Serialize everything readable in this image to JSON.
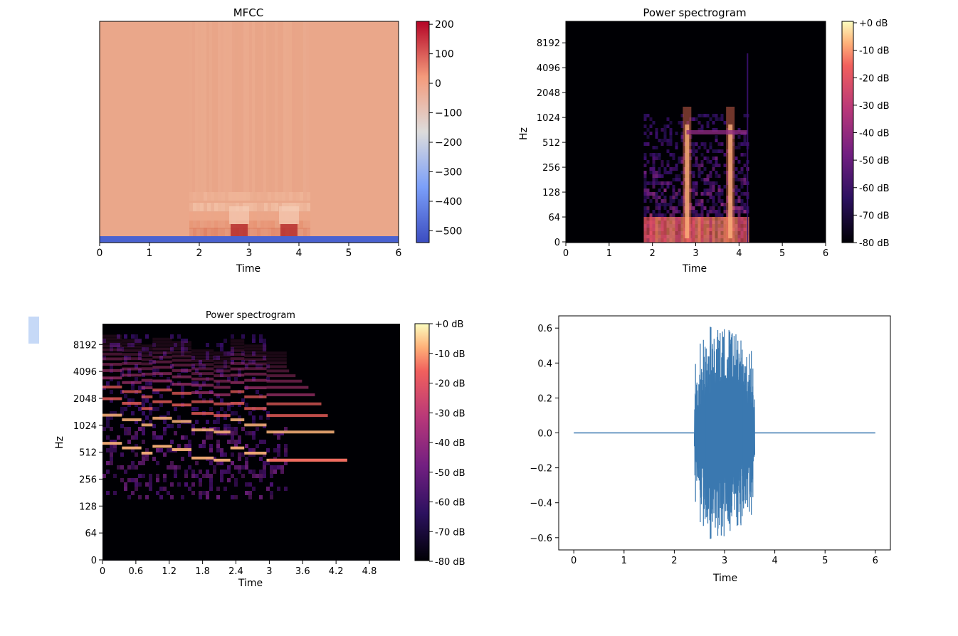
{
  "cell_marker": {
    "color": "#c6d9f7"
  },
  "chart_data": [
    {
      "type": "heatmap",
      "title": "MFCC",
      "xlabel": "Time",
      "ylabel": "",
      "x_ticks": [
        "0",
        "1",
        "2",
        "3",
        "4",
        "5",
        "6"
      ],
      "xlim": [
        0,
        6
      ],
      "y_ticks": [],
      "colorbar": {
        "colormap": "coolwarm",
        "ticks": [
          "200",
          "100",
          "0",
          "−100",
          "−200",
          "−300",
          "−400",
          "−500"
        ],
        "range": [
          -540,
          210
        ]
      },
      "content": {
        "background_value": 40,
        "bottom_band_value": -500,
        "active_segments": [
          {
            "start": 1.8,
            "end": 4.2
          }
        ],
        "peaks": [
          2.8,
          3.8
        ]
      }
    },
    {
      "type": "heatmap",
      "title": "Power spectrogram",
      "xlabel": "Time",
      "ylabel": "Hz",
      "x_ticks": [
        "0",
        "1",
        "2",
        "3",
        "4",
        "5",
        "6"
      ],
      "xlim": [
        0,
        6
      ],
      "y_ticks": [
        "0",
        "64",
        "128",
        "256",
        "512",
        "1024",
        "2048",
        "4096",
        "8192"
      ],
      "colorbar": {
        "colormap": "magma",
        "ticks": [
          "+0 dB",
          "-10 dB",
          "-20 dB",
          "-30 dB",
          "-40 dB",
          "-50 dB",
          "-60 dB",
          "-70 dB",
          "-80 dB"
        ],
        "range": [
          -80,
          0
        ]
      },
      "content": {
        "active_segments": [
          {
            "start": 1.8,
            "end": 4.2
          }
        ],
        "harmonic_tracks": [
          2.8,
          3.8
        ]
      }
    },
    {
      "type": "heatmap",
      "title": "Power spectrogram",
      "xlabel": "Time",
      "ylabel": "Hz",
      "x_ticks": [
        "0",
        "0.6",
        "1.2",
        "1.8",
        "2.4",
        "3",
        "3.6",
        "4.2",
        "4.8"
      ],
      "xlim": [
        0,
        5.35
      ],
      "y_ticks": [
        "0",
        "64",
        "128",
        "256",
        "512",
        "1024",
        "2048",
        "4096",
        "8192"
      ],
      "colorbar": {
        "colormap": "magma",
        "ticks": [
          "+0 dB",
          "-10 dB",
          "-20 dB",
          "-30 dB",
          "-40 dB",
          "-50 dB",
          "-60 dB",
          "-70 dB",
          "-80 dB"
        ],
        "range": [
          -80,
          0
        ]
      },
      "content": {
        "notes": [
          {
            "start": 0.0,
            "end": 0.35,
            "f0": 560
          },
          {
            "start": 0.35,
            "end": 0.7,
            "f0": 500
          },
          {
            "start": 0.7,
            "end": 0.9,
            "f0": 440
          },
          {
            "start": 0.9,
            "end": 1.25,
            "f0": 520
          },
          {
            "start": 1.25,
            "end": 1.6,
            "f0": 480
          },
          {
            "start": 1.6,
            "end": 2.0,
            "f0": 390
          },
          {
            "start": 2.0,
            "end": 2.3,
            "f0": 370
          },
          {
            "start": 2.3,
            "end": 2.55,
            "f0": 500
          },
          {
            "start": 2.55,
            "end": 2.95,
            "f0": 440
          },
          {
            "start": 2.95,
            "end": 4.4,
            "f0": 370
          }
        ]
      }
    },
    {
      "type": "line",
      "title": "",
      "xlabel": "Time",
      "ylabel": "",
      "x_ticks": [
        "0",
        "1",
        "2",
        "3",
        "4",
        "5",
        "6"
      ],
      "xlim": [
        -0.3,
        6.3
      ],
      "y_ticks": [
        "0.6",
        "0.4",
        "0.2",
        "0.0",
        "−0.2",
        "−0.4",
        "−0.6"
      ],
      "ylim": [
        -0.67,
        0.67
      ],
      "series": [
        {
          "color": "#3a78b0",
          "x": [
            0,
            2.4,
            6
          ],
          "y": [
            0,
            0,
            0
          ],
          "burst": {
            "start": 2.4,
            "end": 3.6,
            "max_amplitude": 0.61
          }
        }
      ]
    }
  ]
}
